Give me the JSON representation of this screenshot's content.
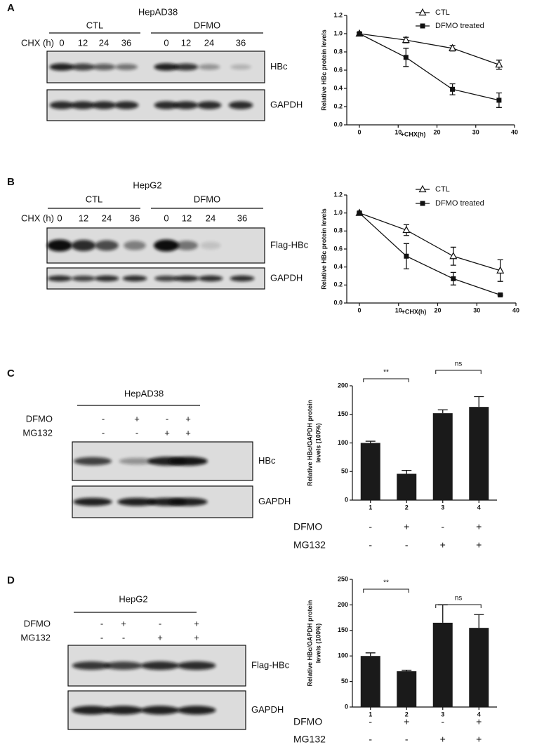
{
  "panels": [
    "A",
    "B",
    "C",
    "D"
  ],
  "blots": [
    {
      "cell_line": "HepAD38",
      "groups": [
        "CTL",
        "DFMO"
      ],
      "time_label": "CHX (h)",
      "lanes": [
        "0",
        "12",
        "24",
        "36",
        "0",
        "12",
        "24",
        "36"
      ],
      "rows": [
        "HBc",
        "GAPDH"
      ]
    },
    {
      "cell_line": "HepG2",
      "groups": [
        "CTL",
        "DFMO"
      ],
      "time_label": "CHX (h)",
      "lanes": [
        "0",
        "12",
        "24",
        "36",
        "0",
        "12",
        "24",
        "36"
      ],
      "rows": [
        "Flag-HBc",
        "GAPDH"
      ]
    },
    {
      "cell_line": "HepAD38",
      "conditions": [
        {
          "name": "DFMO",
          "signs": [
            "-",
            "+",
            "-",
            "+"
          ]
        },
        {
          "name": "MG132",
          "signs": [
            "-",
            "-",
            "+",
            "+"
          ]
        }
      ],
      "rows": [
        "HBc",
        "GAPDH"
      ]
    },
    {
      "cell_line": "HepG2",
      "conditions": [
        {
          "name": "DFMO",
          "signs": [
            "-",
            "+",
            "-",
            "+"
          ]
        },
        {
          "name": "MG132",
          "signs": [
            "-",
            "-",
            "+",
            "+"
          ]
        }
      ],
      "rows": [
        "Flag-HBc",
        "GAPDH"
      ]
    }
  ],
  "chart_data": [
    {
      "type": "line",
      "x_label": "+CHX(h)",
      "y_label": "Relative HBc protein levels",
      "x": [
        0,
        12,
        24,
        36
      ],
      "xlim": [
        0,
        40
      ],
      "xticks": [
        0,
        10,
        20,
        30,
        40
      ],
      "ylim": [
        0,
        1.2
      ],
      "yticks": [
        {
          "value": 0,
          "label": "0.0"
        },
        0.2,
        0.4,
        0.6,
        0.8,
        {
          "value": 1,
          "label": "1.0"
        },
        1.2
      ],
      "series": [
        {
          "name": "CTL",
          "color": "#111111",
          "marker": "triangle-open",
          "values": [
            1.0,
            0.93,
            0.84,
            0.66
          ],
          "errors": [
            0.01,
            0.03,
            0.03,
            0.05
          ]
        },
        {
          "name": "DFMO treated",
          "color": "#111111",
          "marker": "square",
          "values": [
            1.0,
            0.74,
            0.39,
            0.27
          ],
          "errors": [
            0.01,
            0.1,
            0.06,
            0.08
          ]
        }
      ]
    },
    {
      "type": "line",
      "x_label": "+CHX(h)",
      "y_label": "Relative HBc protein levels",
      "x": [
        0,
        12,
        24,
        36
      ],
      "xlim": [
        0,
        40
      ],
      "xticks": [
        0,
        10,
        20,
        30,
        40
      ],
      "ylim": [
        0,
        1.2
      ],
      "yticks": [
        {
          "value": 0,
          "label": "0.0"
        },
        0.2,
        0.4,
        0.6,
        0.8,
        {
          "value": 1,
          "label": "1.0"
        },
        1.2
      ],
      "series": [
        {
          "name": "CTL",
          "color": "#111111",
          "marker": "triangle-open",
          "values": [
            1.0,
            0.81,
            0.52,
            0.36
          ],
          "errors": [
            0.01,
            0.06,
            0.1,
            0.12
          ]
        },
        {
          "name": "DFMO treated",
          "color": "#111111",
          "marker": "square",
          "values": [
            1.0,
            0.52,
            0.27,
            0.09
          ],
          "errors": [
            0.01,
            0.14,
            0.07,
            0.01
          ]
        }
      ]
    },
    {
      "type": "bar",
      "y_label": [
        "Relative HBc/GAPDH protein",
        "levels (100%)"
      ],
      "categories": [
        "1",
        "2",
        "3",
        "4"
      ],
      "values": [
        100,
        46,
        152,
        163
      ],
      "errors": [
        3,
        6,
        6,
        18
      ],
      "color": "#1a1a1a",
      "ylim": [
        0,
        200
      ],
      "yticks": [
        0,
        50,
        100,
        150,
        200
      ],
      "annotations": [
        "**",
        "ns"
      ],
      "conditions": [
        {
          "name": "DFMO",
          "signs": [
            "-",
            "+",
            "-",
            "+"
          ]
        },
        {
          "name": "MG132",
          "signs": [
            "-",
            "-",
            "+",
            "+"
          ]
        }
      ]
    },
    {
      "type": "bar",
      "y_label": [
        "Relative HBc/GAPDH protein",
        "levels (100%)"
      ],
      "categories": [
        "1",
        "2",
        "3",
        "4"
      ],
      "values": [
        100,
        70,
        165,
        155
      ],
      "errors": [
        6,
        2,
        35,
        26
      ],
      "color": "#1a1a1a",
      "ylim": [
        0,
        250
      ],
      "yticks": [
        0,
        50,
        100,
        150,
        200,
        250
      ],
      "annotations": [
        "**",
        "ns"
      ],
      "conditions": [
        {
          "name": "DFMO",
          "signs": [
            "-",
            "+",
            "-",
            "+"
          ]
        },
        {
          "name": "MG132",
          "signs": [
            "-",
            "-",
            "+",
            "+"
          ]
        }
      ]
    }
  ]
}
